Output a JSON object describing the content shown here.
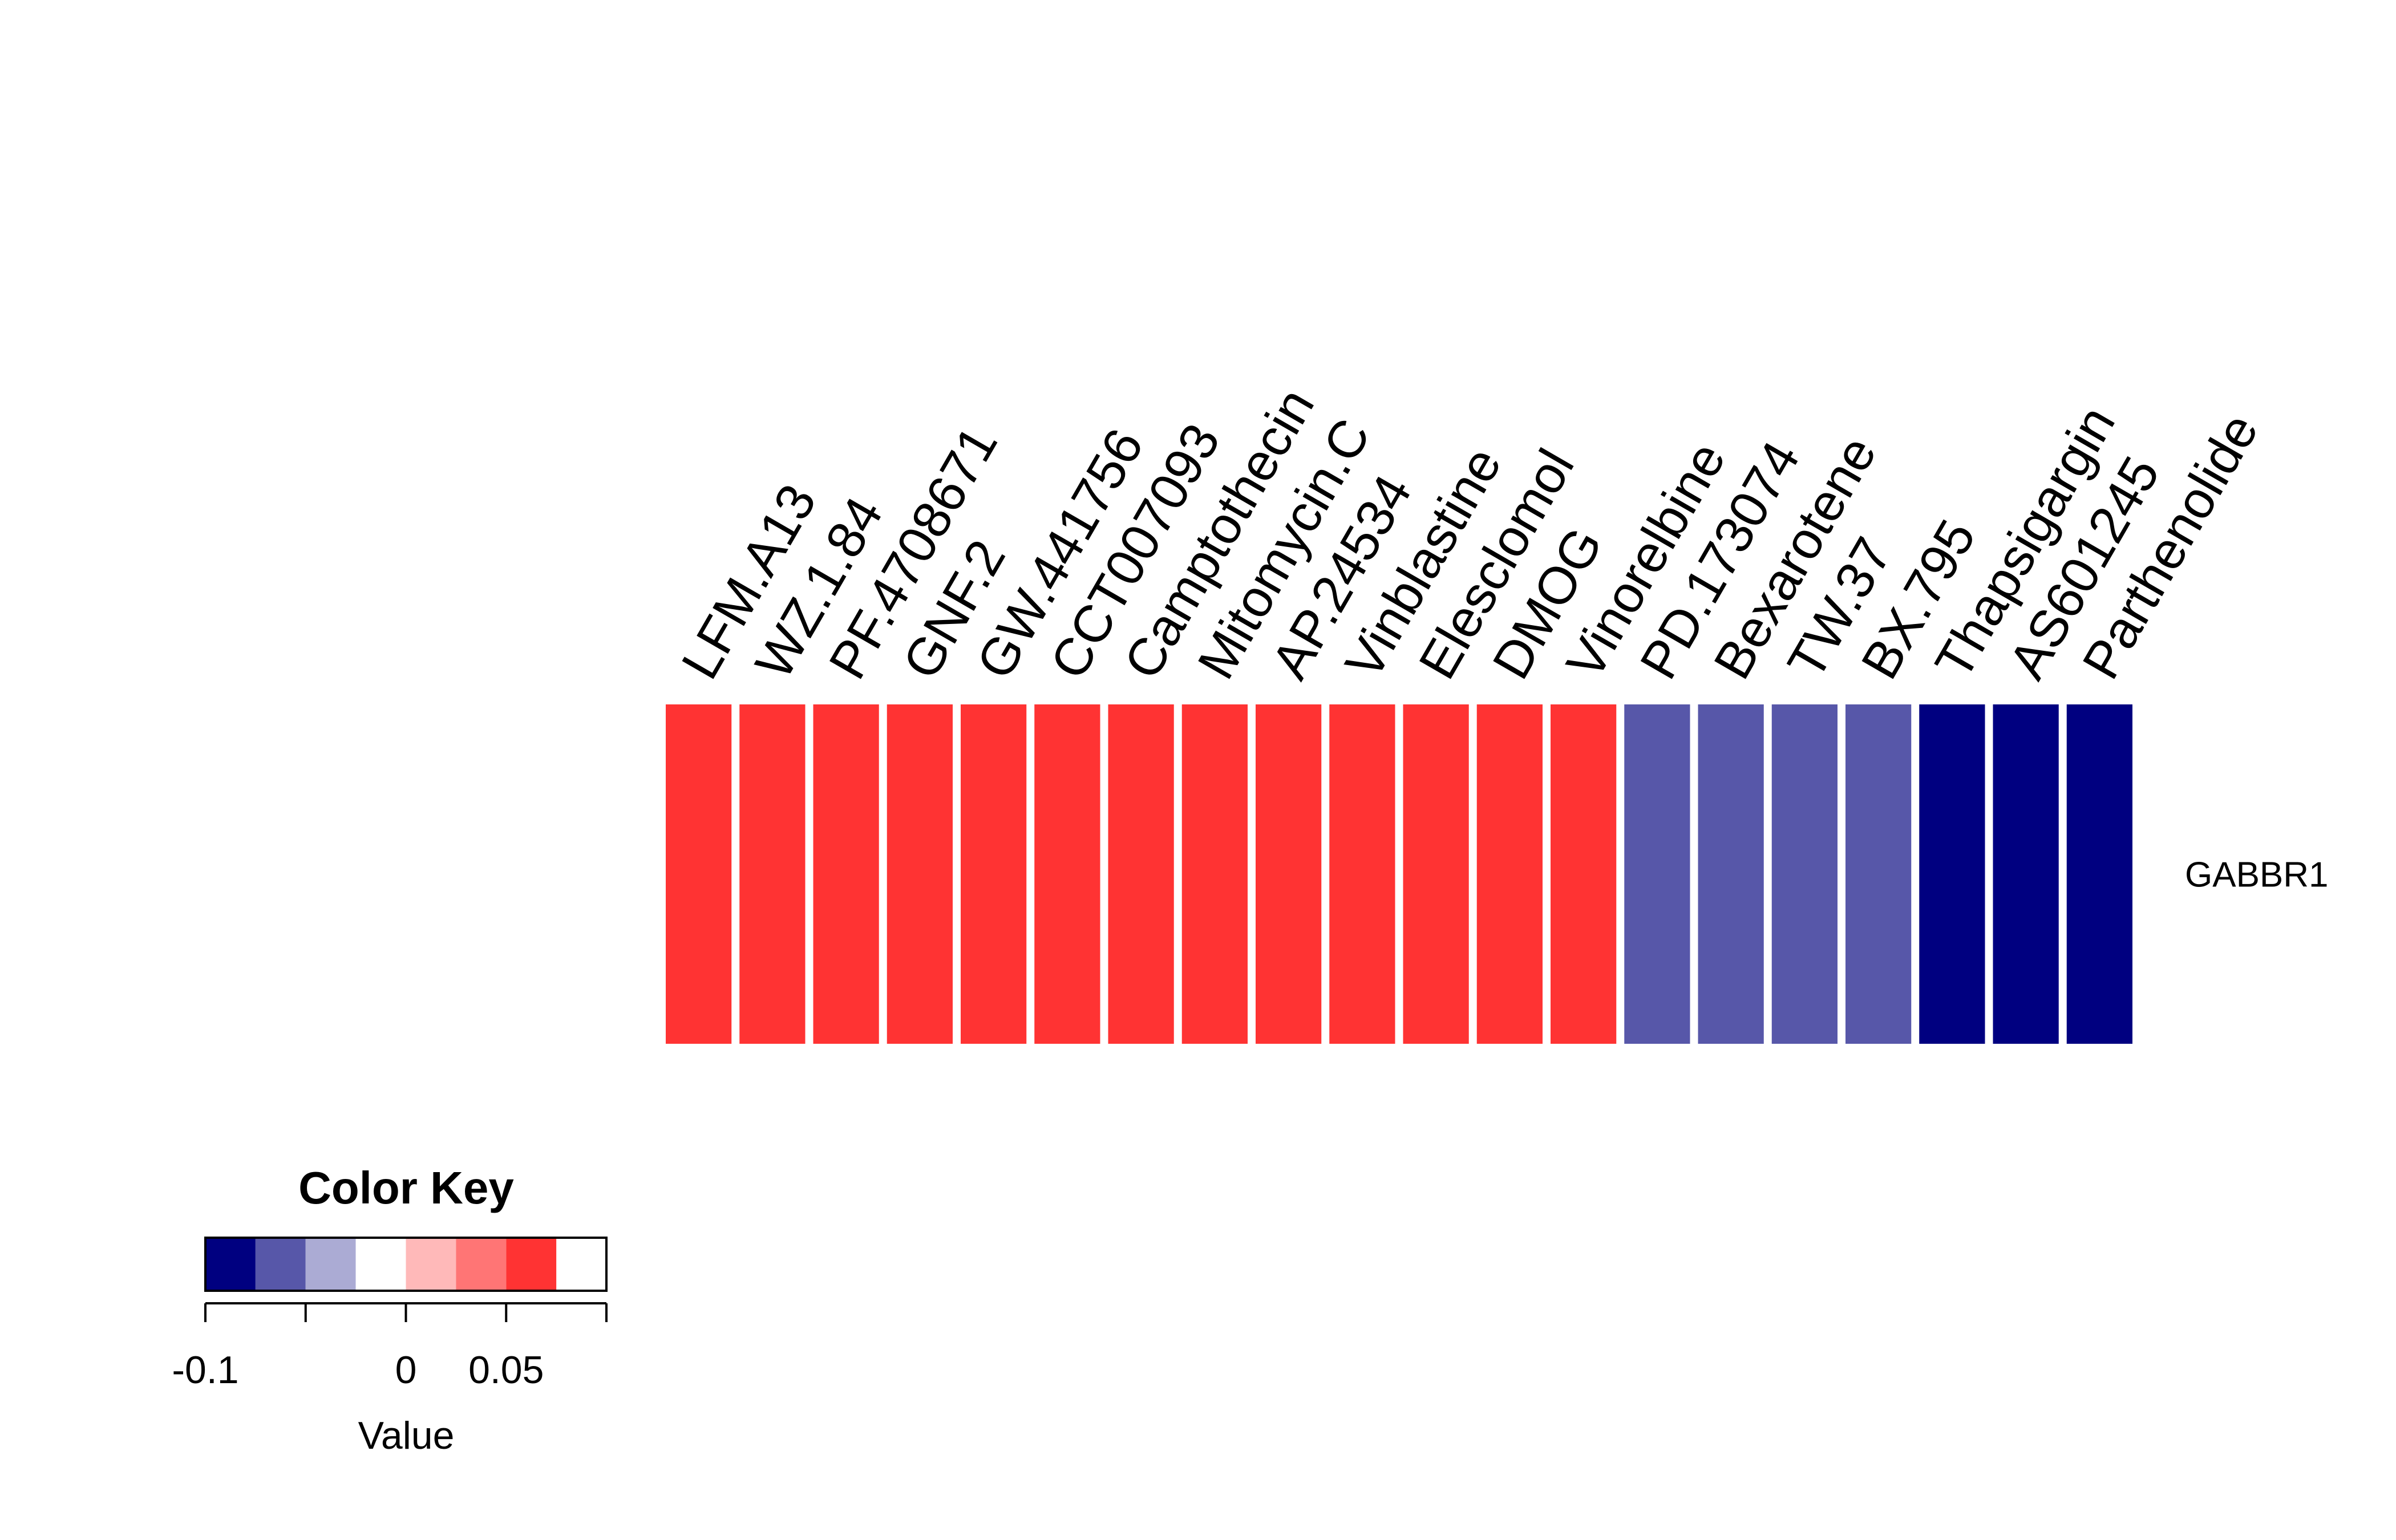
{
  "chart_data": {
    "type": "heatmap",
    "title": "",
    "rows": [
      "GABBR1"
    ],
    "columns": [
      "LFM.A13",
      "WZ.1.84",
      "PF.4708671",
      "GNF.2",
      "GW.441756",
      "CCT007093",
      "Camptothecin",
      "Mitomycin.C",
      "AP.24534",
      "Vinblastine",
      "Elesclomol",
      "DMOG",
      "Vinorelbine",
      "PD.173074",
      "Bexarotene",
      "TW.37",
      "BX.795",
      "Thapsigargin",
      "AS601245",
      "Parthenolide"
    ],
    "values": [
      [
        0.09,
        0.09,
        0.09,
        0.06,
        0.06,
        0.06,
        0.06,
        0.06,
        0.06,
        0.06,
        0.06,
        0.06,
        0.06,
        -0.06,
        -0.06,
        -0.06,
        -0.06,
        -0.1,
        -0.1,
        -0.1
      ]
    ],
    "color_key": {
      "title": "Color Key",
      "xlabel": "Value",
      "range": [
        -0.1,
        0.1
      ],
      "breaks": [
        -0.1,
        -0.075,
        -0.05,
        -0.025,
        0,
        0.025,
        0.05,
        0.075,
        0.1
      ],
      "colors": [
        "#000080",
        "#5757A9",
        "#ABABD4",
        "#FFFFFF",
        "#FFB9B9",
        "#FF7575",
        "#FF3333"
      ],
      "tick_values": [
        -0.1,
        -0.05,
        0,
        0.05,
        0.1
      ],
      "tick_labels": [
        "-0.1",
        "",
        "0",
        "0.05",
        ""
      ]
    }
  }
}
